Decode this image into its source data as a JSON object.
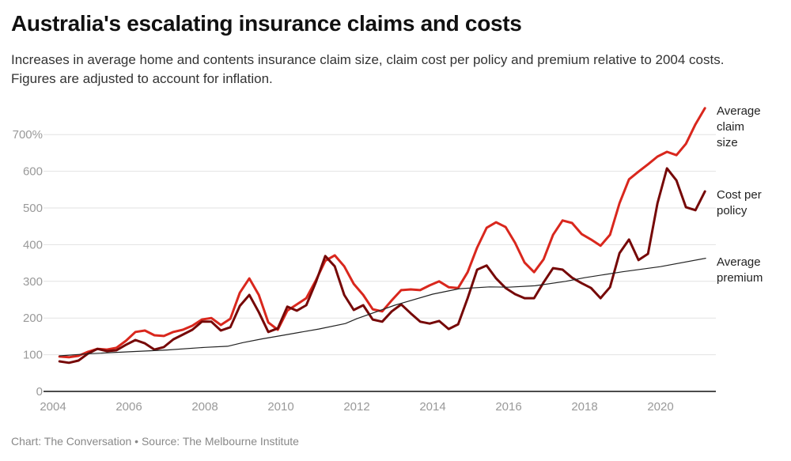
{
  "title": "Australia's escalating insurance claims and costs",
  "subtitle": "Increases in average home and contents insurance claim size, claim cost per policy and premium relative to 2004 costs. Figures are adjusted to account for inflation.",
  "footer": "Chart: The Conversation • Source: The Melbourne Institute",
  "chart_data": {
    "type": "line",
    "title": "Australia's escalating insurance claims and costs",
    "xlabel": "",
    "ylabel": "",
    "xlim": [
      2004,
      2021.3
    ],
    "ylim": [
      0,
      780
    ],
    "x_ticks": [
      "2004",
      "2006",
      "2008",
      "2010",
      "2012",
      "2014",
      "2016",
      "2018",
      "2020"
    ],
    "y_ticks": [
      "0",
      "100",
      "200",
      "300",
      "400",
      "500",
      "600",
      "700%"
    ],
    "grid": true,
    "legend": "direct labels at right",
    "series": [
      {
        "name": "Average claim size",
        "label_lines": [
          "Average",
          "claim",
          "size"
        ],
        "color": "#d9271d",
        "width": 3,
        "x_start": 2004.17,
        "x_step": 0.25,
        "values": [
          95,
          93,
          97,
          108,
          116,
          114,
          119,
          138,
          162,
          166,
          153,
          151,
          162,
          168,
          179,
          196,
          200,
          181,
          198,
          269,
          308,
          263,
          188,
          168,
          220,
          237,
          254,
          302,
          356,
          371,
          341,
          293,
          263,
          224,
          218,
          248,
          276,
          278,
          276,
          289,
          300,
          284,
          282,
          325,
          392,
          446,
          461,
          448,
          405,
          351,
          325,
          360,
          427,
          466,
          459,
          429,
          414,
          397,
          427,
          513,
          578,
          599,
          619,
          640,
          653,
          644,
          675,
          728,
          772
        ]
      },
      {
        "name": "Cost per policy",
        "label_lines": [
          "Cost per",
          "policy"
        ],
        "color": "#760807",
        "width": 3,
        "x_start": 2004.17,
        "x_step": 0.25,
        "values": [
          82,
          78,
          84,
          103,
          116,
          110,
          112,
          127,
          140,
          131,
          114,
          121,
          142,
          155,
          168,
          190,
          190,
          166,
          175,
          233,
          263,
          216,
          162,
          172,
          231,
          220,
          235,
          297,
          369,
          341,
          263,
          222,
          235,
          196,
          190,
          218,
          237,
          213,
          190,
          185,
          192,
          170,
          183,
          254,
          332,
          343,
          308,
          282,
          265,
          254,
          254,
          297,
          336,
          332,
          310,
          295,
          282,
          254,
          284,
          377,
          414,
          358,
          375,
          513,
          608,
          575,
          502,
          494,
          545
        ]
      },
      {
        "name": "Average premium",
        "label_lines": [
          "Average",
          "premium"
        ],
        "color": "#222222",
        "width": 1.2,
        "x": [
          2004.17,
          2005,
          2006,
          2007,
          2008,
          2008.6,
          2009,
          2009.5,
          2010,
          2011,
          2011.7,
          2012,
          2013,
          2014,
          2014.7,
          2015.5,
          2016,
          2016.7,
          2017.5,
          2018,
          2019,
          2020,
          2021.19
        ],
        "values": [
          97,
          103,
          108,
          113,
          120,
          123,
          133,
          143,
          152,
          170,
          185,
          198,
          235,
          265,
          280,
          285,
          284,
          288,
          300,
          310,
          326,
          340,
          363
        ]
      }
    ]
  }
}
